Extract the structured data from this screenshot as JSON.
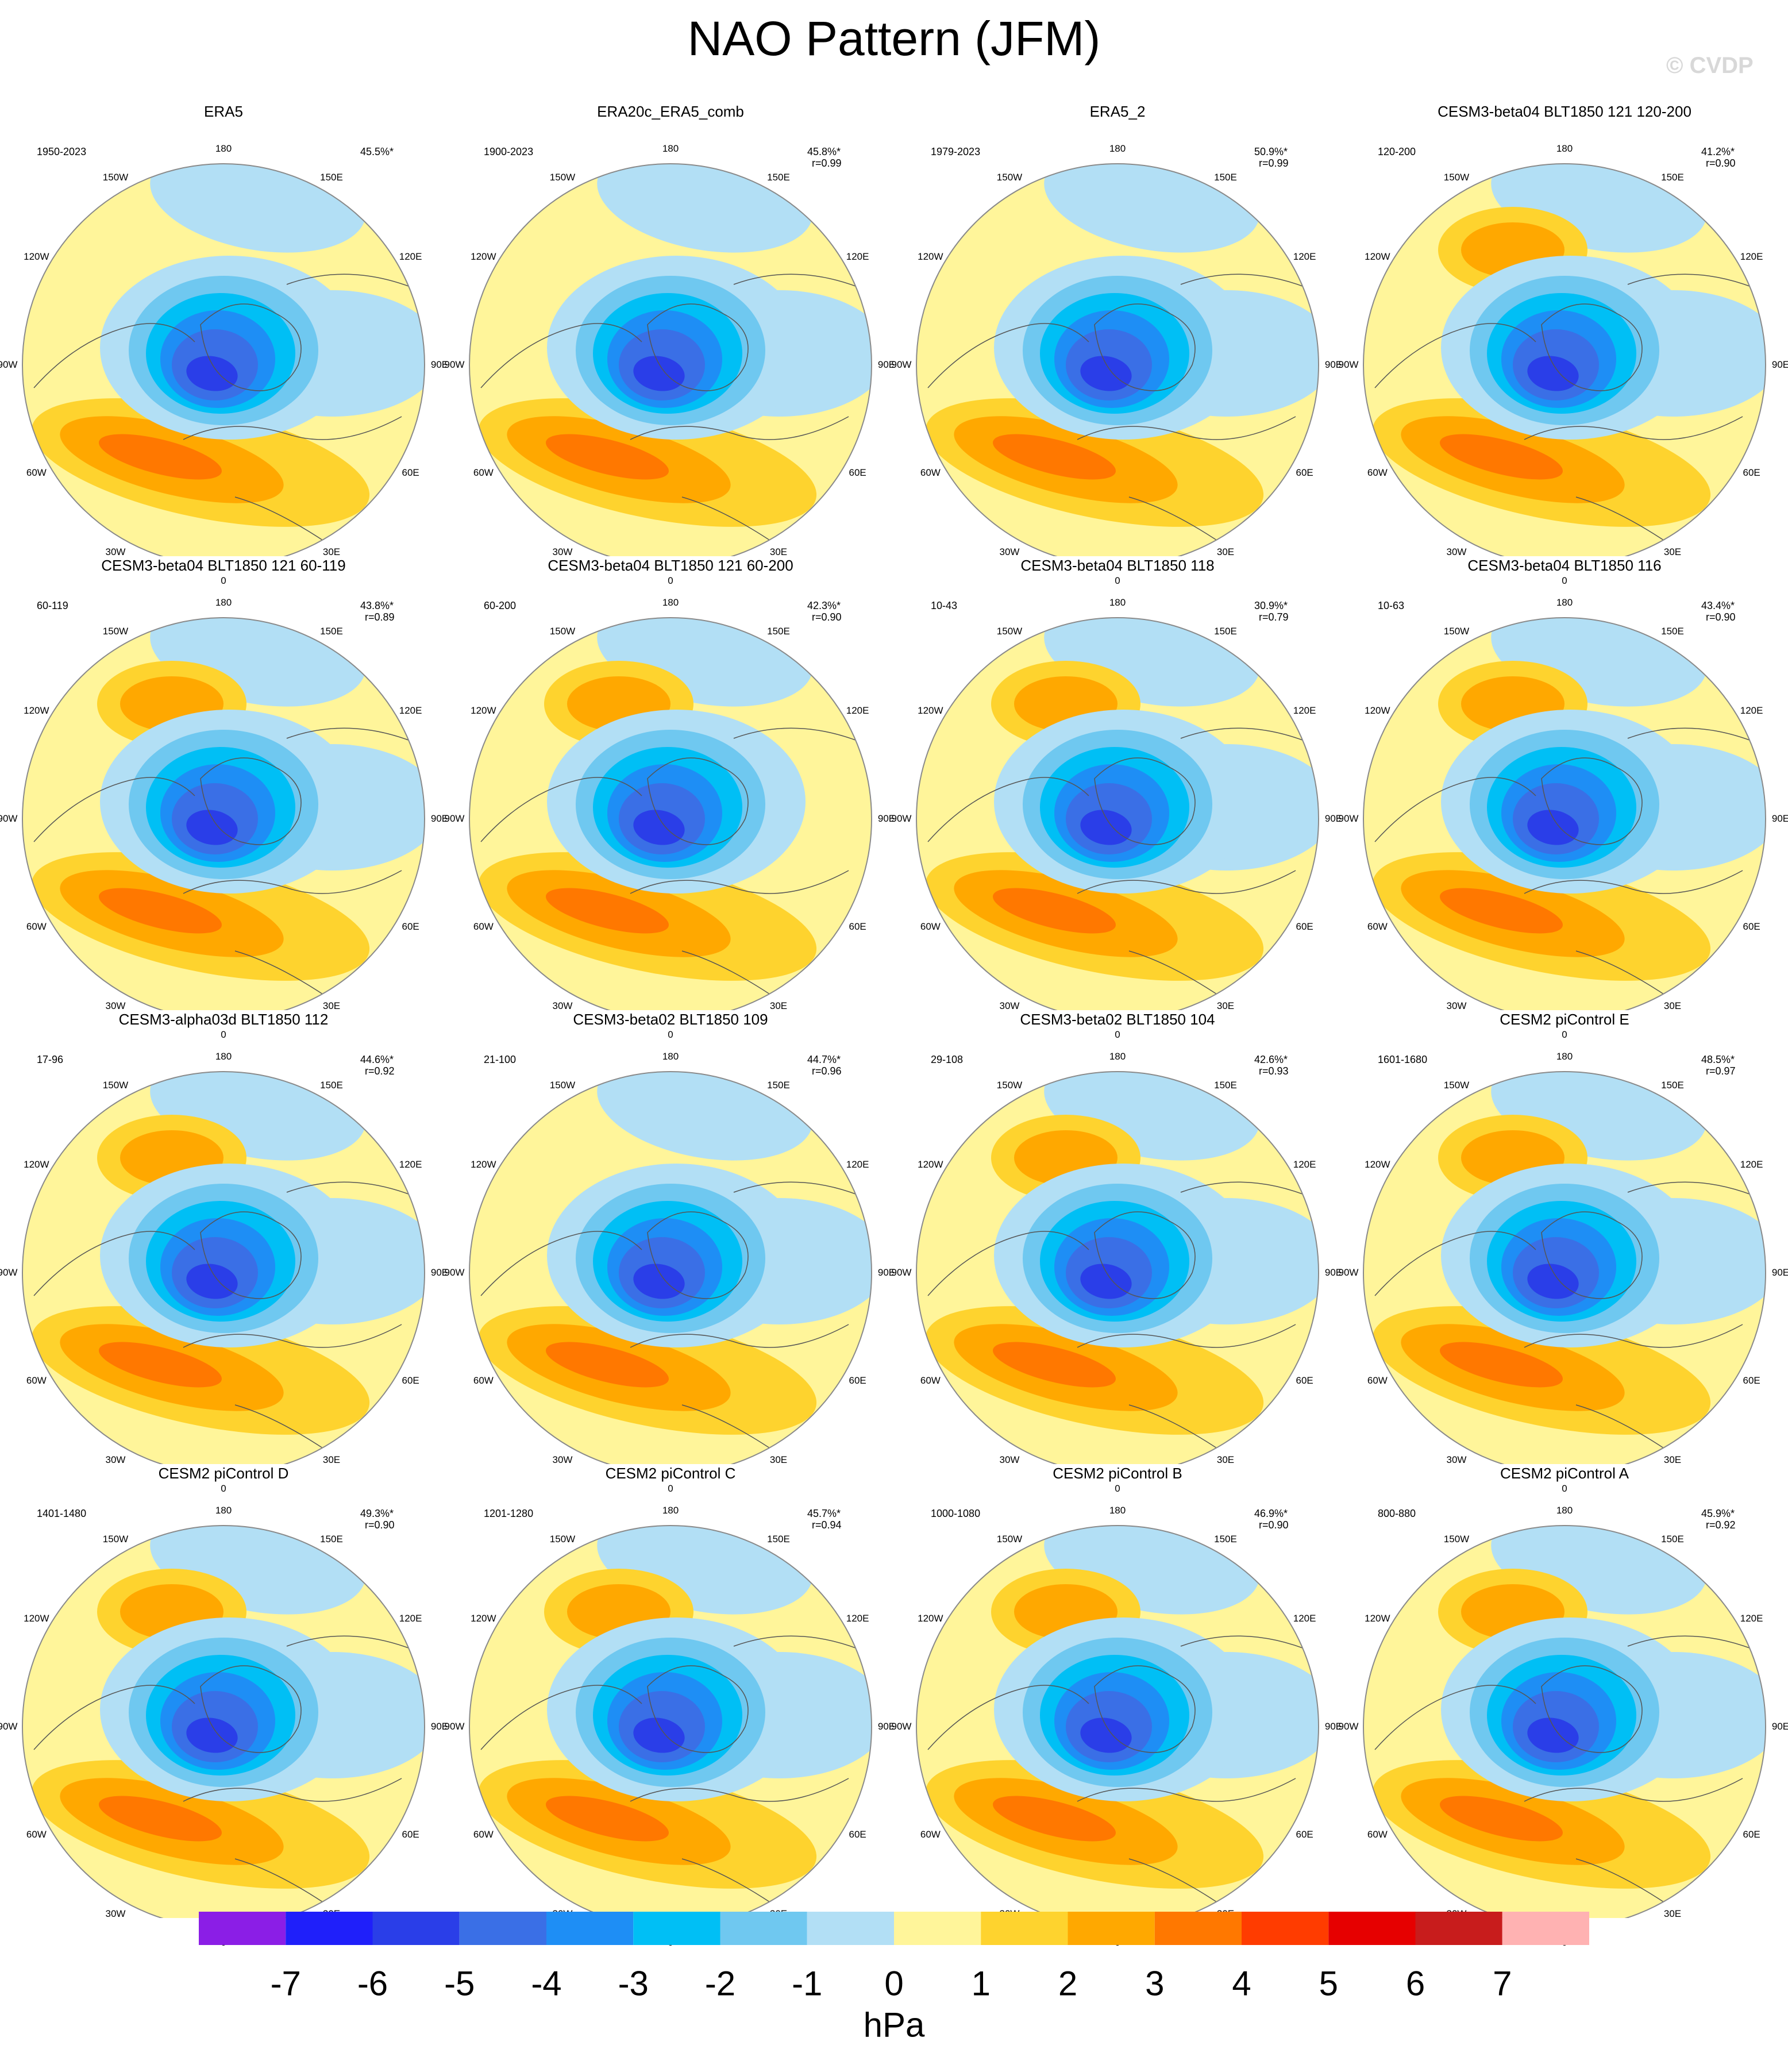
{
  "title": "NAO Pattern (JFM)",
  "watermark": "© CVDP",
  "longitude_labels": [
    "180",
    "150E",
    "120E",
    "90E",
    "60E",
    "30E",
    "0",
    "30W",
    "60W",
    "90W",
    "120W",
    "150W"
  ],
  "colors": {
    "levels": [
      "#8b1ee6",
      "#1f1ffa",
      "#2a3ee8",
      "#3a6fe6",
      "#1e8ef5",
      "#00bff5",
      "#6fc8f0",
      "#b2dff5",
      "#fff59a",
      "#fed32e",
      "#ffa800",
      "#ff7800",
      "#ff3c00",
      "#e60000",
      "#c81c1c",
      "#ffb2b2"
    ],
    "coast": "#555555",
    "neg_default": "#b2dff5",
    "pos_default": "#fff59a"
  },
  "panels": [
    {
      "title": "ERA5",
      "years": "1950-2023",
      "variance": "45.5%*",
      "corr": "",
      "asia_low": 1,
      "pacific_high": 0
    },
    {
      "title": "ERA20c_ERA5_comb",
      "years": "1900-2023",
      "variance": "45.8%*",
      "corr": "r=0.99",
      "asia_low": 1,
      "pacific_high": 0
    },
    {
      "title": "ERA5_2",
      "years": "1979-2023",
      "variance": "50.9%*",
      "corr": "r=0.99",
      "asia_low": 1,
      "pacific_high": 0
    },
    {
      "title": "CESM3-beta04 BLT1850 121 120-200",
      "years": "120-200",
      "variance": "41.2%*",
      "corr": "r=0.90",
      "asia_low": 1,
      "pacific_high": 1
    },
    {
      "title": "CESM3-beta04 BLT1850 121 60-119",
      "years": "60-119",
      "variance": "43.8%*",
      "corr": "r=0.89",
      "asia_low": 1,
      "pacific_high": 1
    },
    {
      "title": "CESM3-beta04 BLT1850 121 60-200",
      "years": "60-200",
      "variance": "42.3%*",
      "corr": "r=0.90",
      "asia_low": 0,
      "pacific_high": 1
    },
    {
      "title": "CESM3-beta04 BLT1850 118",
      "years": "10-43",
      "variance": "30.9%*",
      "corr": "r=0.79",
      "asia_low": 1,
      "pacific_high": 1
    },
    {
      "title": "CESM3-beta04 BLT1850 116",
      "years": "10-63",
      "variance": "43.4%*",
      "corr": "r=0.90",
      "asia_low": 1,
      "pacific_high": 1
    },
    {
      "title": "CESM3-alpha03d BLT1850 112",
      "years": "17-96",
      "variance": "44.6%*",
      "corr": "r=0.92",
      "asia_low": 1,
      "pacific_high": 1
    },
    {
      "title": "CESM3-beta02 BLT1850 109",
      "years": "21-100",
      "variance": "44.7%*",
      "corr": "r=0.96",
      "asia_low": 1,
      "pacific_high": 0
    },
    {
      "title": "CESM3-beta02 BLT1850 104",
      "years": "29-108",
      "variance": "42.6%*",
      "corr": "r=0.93",
      "asia_low": 1,
      "pacific_high": 1
    },
    {
      "title": "CESM2 piControl E",
      "years": "1601-1680",
      "variance": "48.5%*",
      "corr": "r=0.97",
      "asia_low": 1,
      "pacific_high": 1
    },
    {
      "title": "CESM2 piControl D",
      "years": "1401-1480",
      "variance": "49.3%*",
      "corr": "r=0.90",
      "asia_low": 1,
      "pacific_high": 1
    },
    {
      "title": "CESM2 piControl C",
      "years": "1201-1280",
      "variance": "45.7%*",
      "corr": "r=0.94",
      "asia_low": 1,
      "pacific_high": 1
    },
    {
      "title": "CESM2 piControl B",
      "years": "1000-1080",
      "variance": "46.9%*",
      "corr": "r=0.90",
      "asia_low": 1,
      "pacific_high": 1
    },
    {
      "title": "CESM2 piControl A",
      "years": "800-880",
      "variance": "45.9%*",
      "corr": "r=0.92",
      "asia_low": 1,
      "pacific_high": 1
    }
  ],
  "colorbar": {
    "labels": [
      "-7",
      "-6",
      "-5",
      "-4",
      "-3",
      "-2",
      "-1",
      "0",
      "1",
      "2",
      "3",
      "4",
      "5",
      "6",
      "7"
    ],
    "units": "hPa"
  }
}
